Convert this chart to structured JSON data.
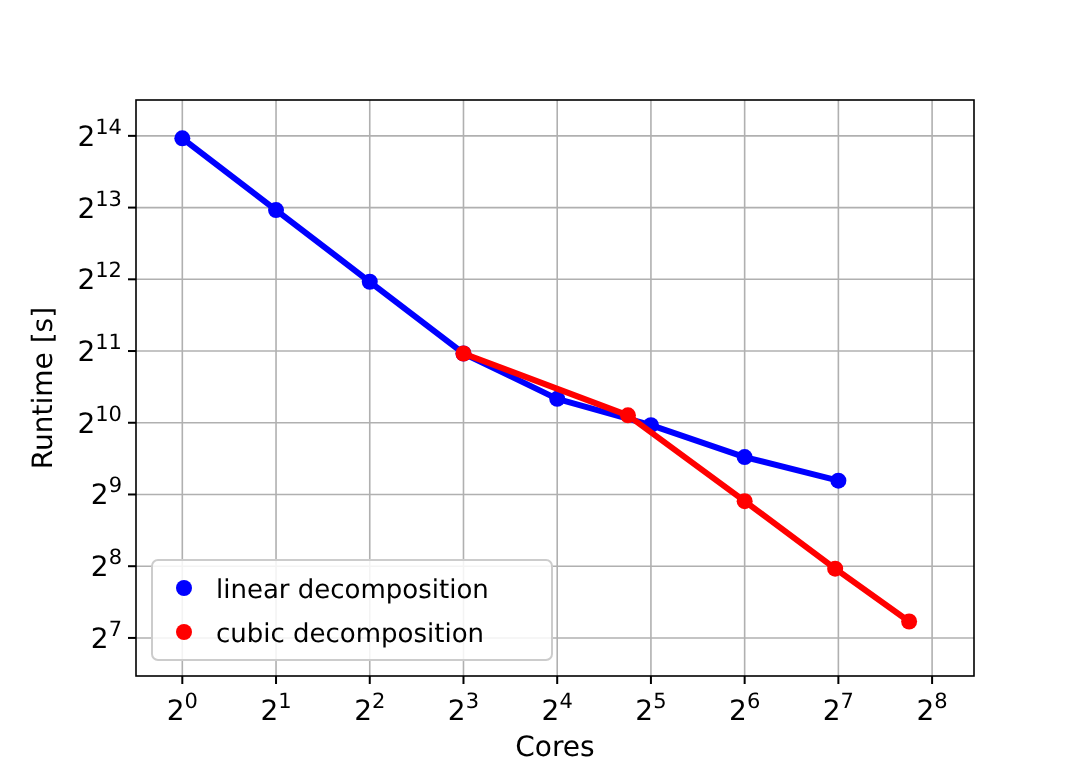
{
  "chart_data": {
    "type": "line",
    "xlabel": "Cores",
    "ylabel": "Runtime [s]",
    "log": "xy",
    "grid": true,
    "legend": "bottom left",
    "marker": "circle",
    "line_style": "solid",
    "xlim": [
      0.71,
      349
    ],
    "ylim": [
      88.6,
      23170
    ],
    "xticks": [
      {
        "value": 1,
        "label": "2$^{0}$"
      },
      {
        "value": 2,
        "label": "2$^{1}$"
      },
      {
        "value": 4,
        "label": "2$^{2}$"
      },
      {
        "value": 8,
        "label": "2$^{3}$"
      },
      {
        "value": 16,
        "label": "2$^{4}$"
      },
      {
        "value": 32,
        "label": "2$^{5}$"
      },
      {
        "value": 64,
        "label": "2$^{6}$"
      },
      {
        "value": 128,
        "label": "2$^{7}$"
      },
      {
        "value": 256,
        "label": "2$^{8}$"
      }
    ],
    "yticks": [
      {
        "value": 128,
        "label": "2$^{7}$"
      },
      {
        "value": 256,
        "label": "2$^{8}$"
      },
      {
        "value": 512,
        "label": "2$^{9}$"
      },
      {
        "value": 1024,
        "label": "2$^{10}$"
      },
      {
        "value": 2048,
        "label": "2$^{11}$"
      },
      {
        "value": 4096,
        "label": "2$^{12}$"
      },
      {
        "value": 8192,
        "label": "2$^{13}$"
      },
      {
        "value": 16384,
        "label": "2$^{14}$"
      }
    ],
    "series": [
      {
        "name": "linear decomposition",
        "color": "#0000ff",
        "x": [
          1,
          2,
          4,
          8,
          16,
          32,
          64,
          128
        ],
        "values": [
          16000,
          8000,
          4000,
          2000,
          1290,
          1000,
          735,
          585
        ]
      },
      {
        "name": "cubic decomposition",
        "color": "#ff0000",
        "x": [
          8,
          27,
          64,
          125,
          216
        ],
        "values": [
          2000,
          1100,
          480,
          250,
          150
        ]
      }
    ]
  }
}
